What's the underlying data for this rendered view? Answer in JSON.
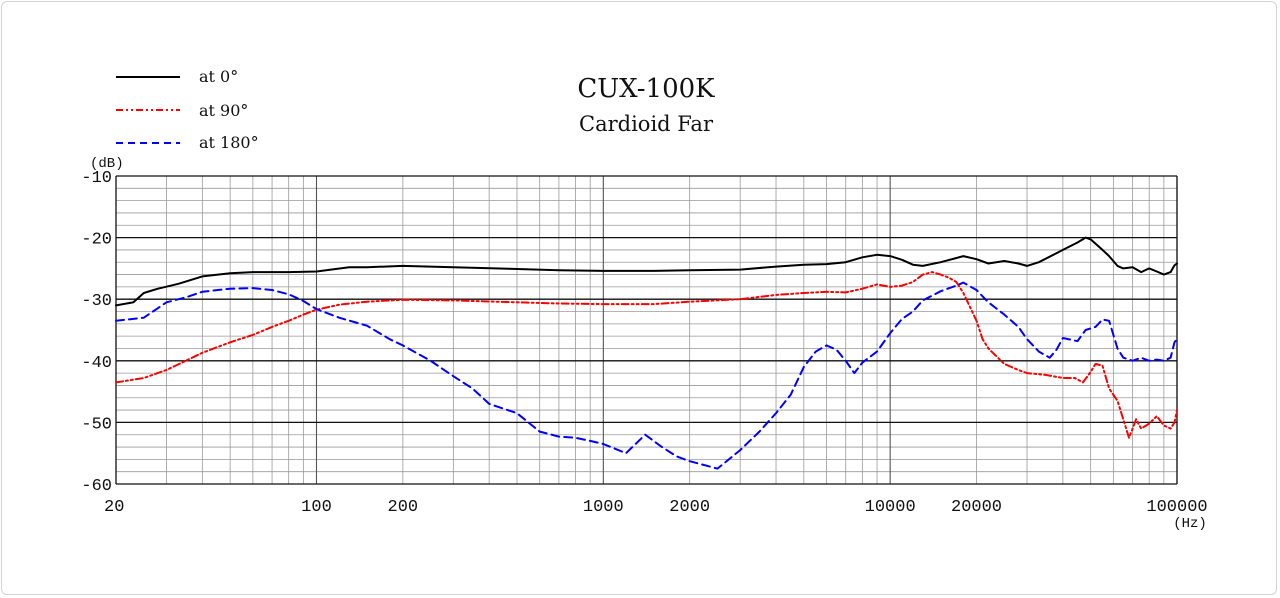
{
  "chart_data": {
    "type": "line",
    "title": "CUX-100K",
    "subtitle": "Cardioid Far",
    "ylabel": "(dB)",
    "xlabel": "(Hz)",
    "x_scale": "log",
    "xlim": [
      20,
      100000
    ],
    "ylim": [
      -60,
      -10
    ],
    "grid": true,
    "legend_position": "top-left",
    "x_ticks": [
      {
        "value": 20,
        "label": "20"
      },
      {
        "value": 100,
        "label": "100"
      },
      {
        "value": 200,
        "label": "200"
      },
      {
        "value": 1000,
        "label": "1000"
      },
      {
        "value": 2000,
        "label": "2000"
      },
      {
        "value": 10000,
        "label": "10000"
      },
      {
        "value": 20000,
        "label": "20000"
      },
      {
        "value": 100000,
        "label": "100000"
      }
    ],
    "y_ticks": [
      {
        "value": -10,
        "label": "-10"
      },
      {
        "value": -20,
        "label": "-20"
      },
      {
        "value": -30,
        "label": "-30"
      },
      {
        "value": -40,
        "label": "-40"
      },
      {
        "value": -50,
        "label": "-50"
      },
      {
        "value": -60,
        "label": "-60"
      }
    ],
    "series": [
      {
        "name": "at 0°",
        "color": "#000000",
        "dash": "solid",
        "points": [
          [
            20,
            -31.0
          ],
          [
            23,
            -30.5
          ],
          [
            25,
            -29.0
          ],
          [
            28,
            -28.3
          ],
          [
            33,
            -27.5
          ],
          [
            40,
            -26.3
          ],
          [
            50,
            -25.8
          ],
          [
            60,
            -25.6
          ],
          [
            80,
            -25.6
          ],
          [
            100,
            -25.5
          ],
          [
            130,
            -24.8
          ],
          [
            150,
            -24.8
          ],
          [
            200,
            -24.6
          ],
          [
            300,
            -24.8
          ],
          [
            500,
            -25.1
          ],
          [
            700,
            -25.3
          ],
          [
            1000,
            -25.4
          ],
          [
            1500,
            -25.4
          ],
          [
            2000,
            -25.3
          ],
          [
            3000,
            -25.2
          ],
          [
            4000,
            -24.7
          ],
          [
            5000,
            -24.4
          ],
          [
            6000,
            -24.3
          ],
          [
            7000,
            -24.0
          ],
          [
            8000,
            -23.2
          ],
          [
            9000,
            -22.8
          ],
          [
            10000,
            -23.0
          ],
          [
            11000,
            -23.6
          ],
          [
            12000,
            -24.4
          ],
          [
            13000,
            -24.6
          ],
          [
            15000,
            -24.0
          ],
          [
            18000,
            -23.0
          ],
          [
            20000,
            -23.5
          ],
          [
            22000,
            -24.2
          ],
          [
            25000,
            -23.8
          ],
          [
            28000,
            -24.2
          ],
          [
            30000,
            -24.6
          ],
          [
            33000,
            -24.0
          ],
          [
            40000,
            -22.0
          ],
          [
            45000,
            -20.8
          ],
          [
            48000,
            -20.0
          ],
          [
            50000,
            -20.3
          ],
          [
            55000,
            -22.0
          ],
          [
            58000,
            -23.0
          ],
          [
            62000,
            -24.6
          ],
          [
            65000,
            -25.0
          ],
          [
            70000,
            -24.8
          ],
          [
            75000,
            -25.6
          ],
          [
            80000,
            -25.0
          ],
          [
            85000,
            -25.5
          ],
          [
            90000,
            -26.0
          ],
          [
            95000,
            -25.6
          ],
          [
            98000,
            -24.5
          ],
          [
            100000,
            -24.2
          ]
        ]
      },
      {
        "name": "at 90°",
        "color": "#ff0000",
        "dash": "dashdotdot",
        "points": [
          [
            20,
            -43.5
          ],
          [
            25,
            -42.8
          ],
          [
            30,
            -41.5
          ],
          [
            35,
            -40.0
          ],
          [
            40,
            -38.7
          ],
          [
            50,
            -37.0
          ],
          [
            60,
            -35.8
          ],
          [
            70,
            -34.5
          ],
          [
            80,
            -33.5
          ],
          [
            90,
            -32.5
          ],
          [
            100,
            -31.7
          ],
          [
            120,
            -30.9
          ],
          [
            150,
            -30.4
          ],
          [
            200,
            -30.1
          ],
          [
            300,
            -30.2
          ],
          [
            500,
            -30.5
          ],
          [
            700,
            -30.7
          ],
          [
            1000,
            -30.8
          ],
          [
            1500,
            -30.8
          ],
          [
            2000,
            -30.4
          ],
          [
            3000,
            -30.0
          ],
          [
            4000,
            -29.3
          ],
          [
            5000,
            -29.0
          ],
          [
            6000,
            -28.8
          ],
          [
            7000,
            -28.9
          ],
          [
            8000,
            -28.3
          ],
          [
            9000,
            -27.6
          ],
          [
            10000,
            -28.0
          ],
          [
            11000,
            -27.8
          ],
          [
            12000,
            -27.2
          ],
          [
            13000,
            -26.0
          ],
          [
            14000,
            -25.6
          ],
          [
            15000,
            -26.0
          ],
          [
            16000,
            -26.5
          ],
          [
            17000,
            -27.2
          ],
          [
            18000,
            -29.0
          ],
          [
            20000,
            -33.5
          ],
          [
            21000,
            -36.5
          ],
          [
            22000,
            -38.0
          ],
          [
            25000,
            -40.5
          ],
          [
            28000,
            -41.5
          ],
          [
            30000,
            -42.0
          ],
          [
            35000,
            -42.3
          ],
          [
            40000,
            -42.8
          ],
          [
            44000,
            -42.8
          ],
          [
            47000,
            -43.5
          ],
          [
            50000,
            -41.8
          ],
          [
            52000,
            -40.5
          ],
          [
            55000,
            -40.8
          ],
          [
            58000,
            -44.5
          ],
          [
            62000,
            -46.5
          ],
          [
            66000,
            -50.5
          ],
          [
            68000,
            -52.5
          ],
          [
            70000,
            -51.0
          ],
          [
            72000,
            -49.5
          ],
          [
            75000,
            -51.0
          ],
          [
            80000,
            -50.2
          ],
          [
            85000,
            -49.0
          ],
          [
            90000,
            -50.5
          ],
          [
            95000,
            -51.0
          ],
          [
            98000,
            -50.0
          ],
          [
            100000,
            -48.0
          ]
        ]
      },
      {
        "name": "at 180°",
        "color": "#0000ff",
        "dash": "dashed",
        "points": [
          [
            20,
            -33.5
          ],
          [
            25,
            -33.0
          ],
          [
            30,
            -30.5
          ],
          [
            35,
            -29.7
          ],
          [
            40,
            -28.8
          ],
          [
            50,
            -28.3
          ],
          [
            60,
            -28.2
          ],
          [
            70,
            -28.5
          ],
          [
            80,
            -29.2
          ],
          [
            90,
            -30.3
          ],
          [
            100,
            -31.6
          ],
          [
            120,
            -33.0
          ],
          [
            150,
            -34.3
          ],
          [
            180,
            -36.5
          ],
          [
            200,
            -37.5
          ],
          [
            250,
            -40.0
          ],
          [
            300,
            -42.5
          ],
          [
            350,
            -44.5
          ],
          [
            400,
            -47.0
          ],
          [
            500,
            -48.5
          ],
          [
            600,
            -51.5
          ],
          [
            700,
            -52.3
          ],
          [
            800,
            -52.5
          ],
          [
            900,
            -53.0
          ],
          [
            1000,
            -53.5
          ],
          [
            1200,
            -55.0
          ],
          [
            1400,
            -52.0
          ],
          [
            1600,
            -54.0
          ],
          [
            1800,
            -55.5
          ],
          [
            2000,
            -56.3
          ],
          [
            2500,
            -57.5
          ],
          [
            3000,
            -54.5
          ],
          [
            3500,
            -51.5
          ],
          [
            4000,
            -48.5
          ],
          [
            4500,
            -45.5
          ],
          [
            5000,
            -41.0
          ],
          [
            5500,
            -38.5
          ],
          [
            6000,
            -37.5
          ],
          [
            6500,
            -38.2
          ],
          [
            7000,
            -40.0
          ],
          [
            7500,
            -42.0
          ],
          [
            8000,
            -40.3
          ],
          [
            9000,
            -38.5
          ],
          [
            10000,
            -35.5
          ],
          [
            11000,
            -33.2
          ],
          [
            12000,
            -32.0
          ],
          [
            13000,
            -30.2
          ],
          [
            15000,
            -28.7
          ],
          [
            17000,
            -27.8
          ],
          [
            18000,
            -27.3
          ],
          [
            20000,
            -28.5
          ],
          [
            22000,
            -30.5
          ],
          [
            25000,
            -32.5
          ],
          [
            28000,
            -34.5
          ],
          [
            30000,
            -36.5
          ],
          [
            33000,
            -38.5
          ],
          [
            36000,
            -39.5
          ],
          [
            38000,
            -38.2
          ],
          [
            40000,
            -36.3
          ],
          [
            45000,
            -36.8
          ],
          [
            48000,
            -35.0
          ],
          [
            52000,
            -34.5
          ],
          [
            55000,
            -33.3
          ],
          [
            58000,
            -33.5
          ],
          [
            62000,
            -38.0
          ],
          [
            65000,
            -39.5
          ],
          [
            70000,
            -40.0
          ],
          [
            75000,
            -39.5
          ],
          [
            80000,
            -40.0
          ],
          [
            85000,
            -39.8
          ],
          [
            90000,
            -40.0
          ],
          [
            95000,
            -39.5
          ],
          [
            98000,
            -37.0
          ],
          [
            100000,
            -36.5
          ]
        ]
      }
    ]
  }
}
